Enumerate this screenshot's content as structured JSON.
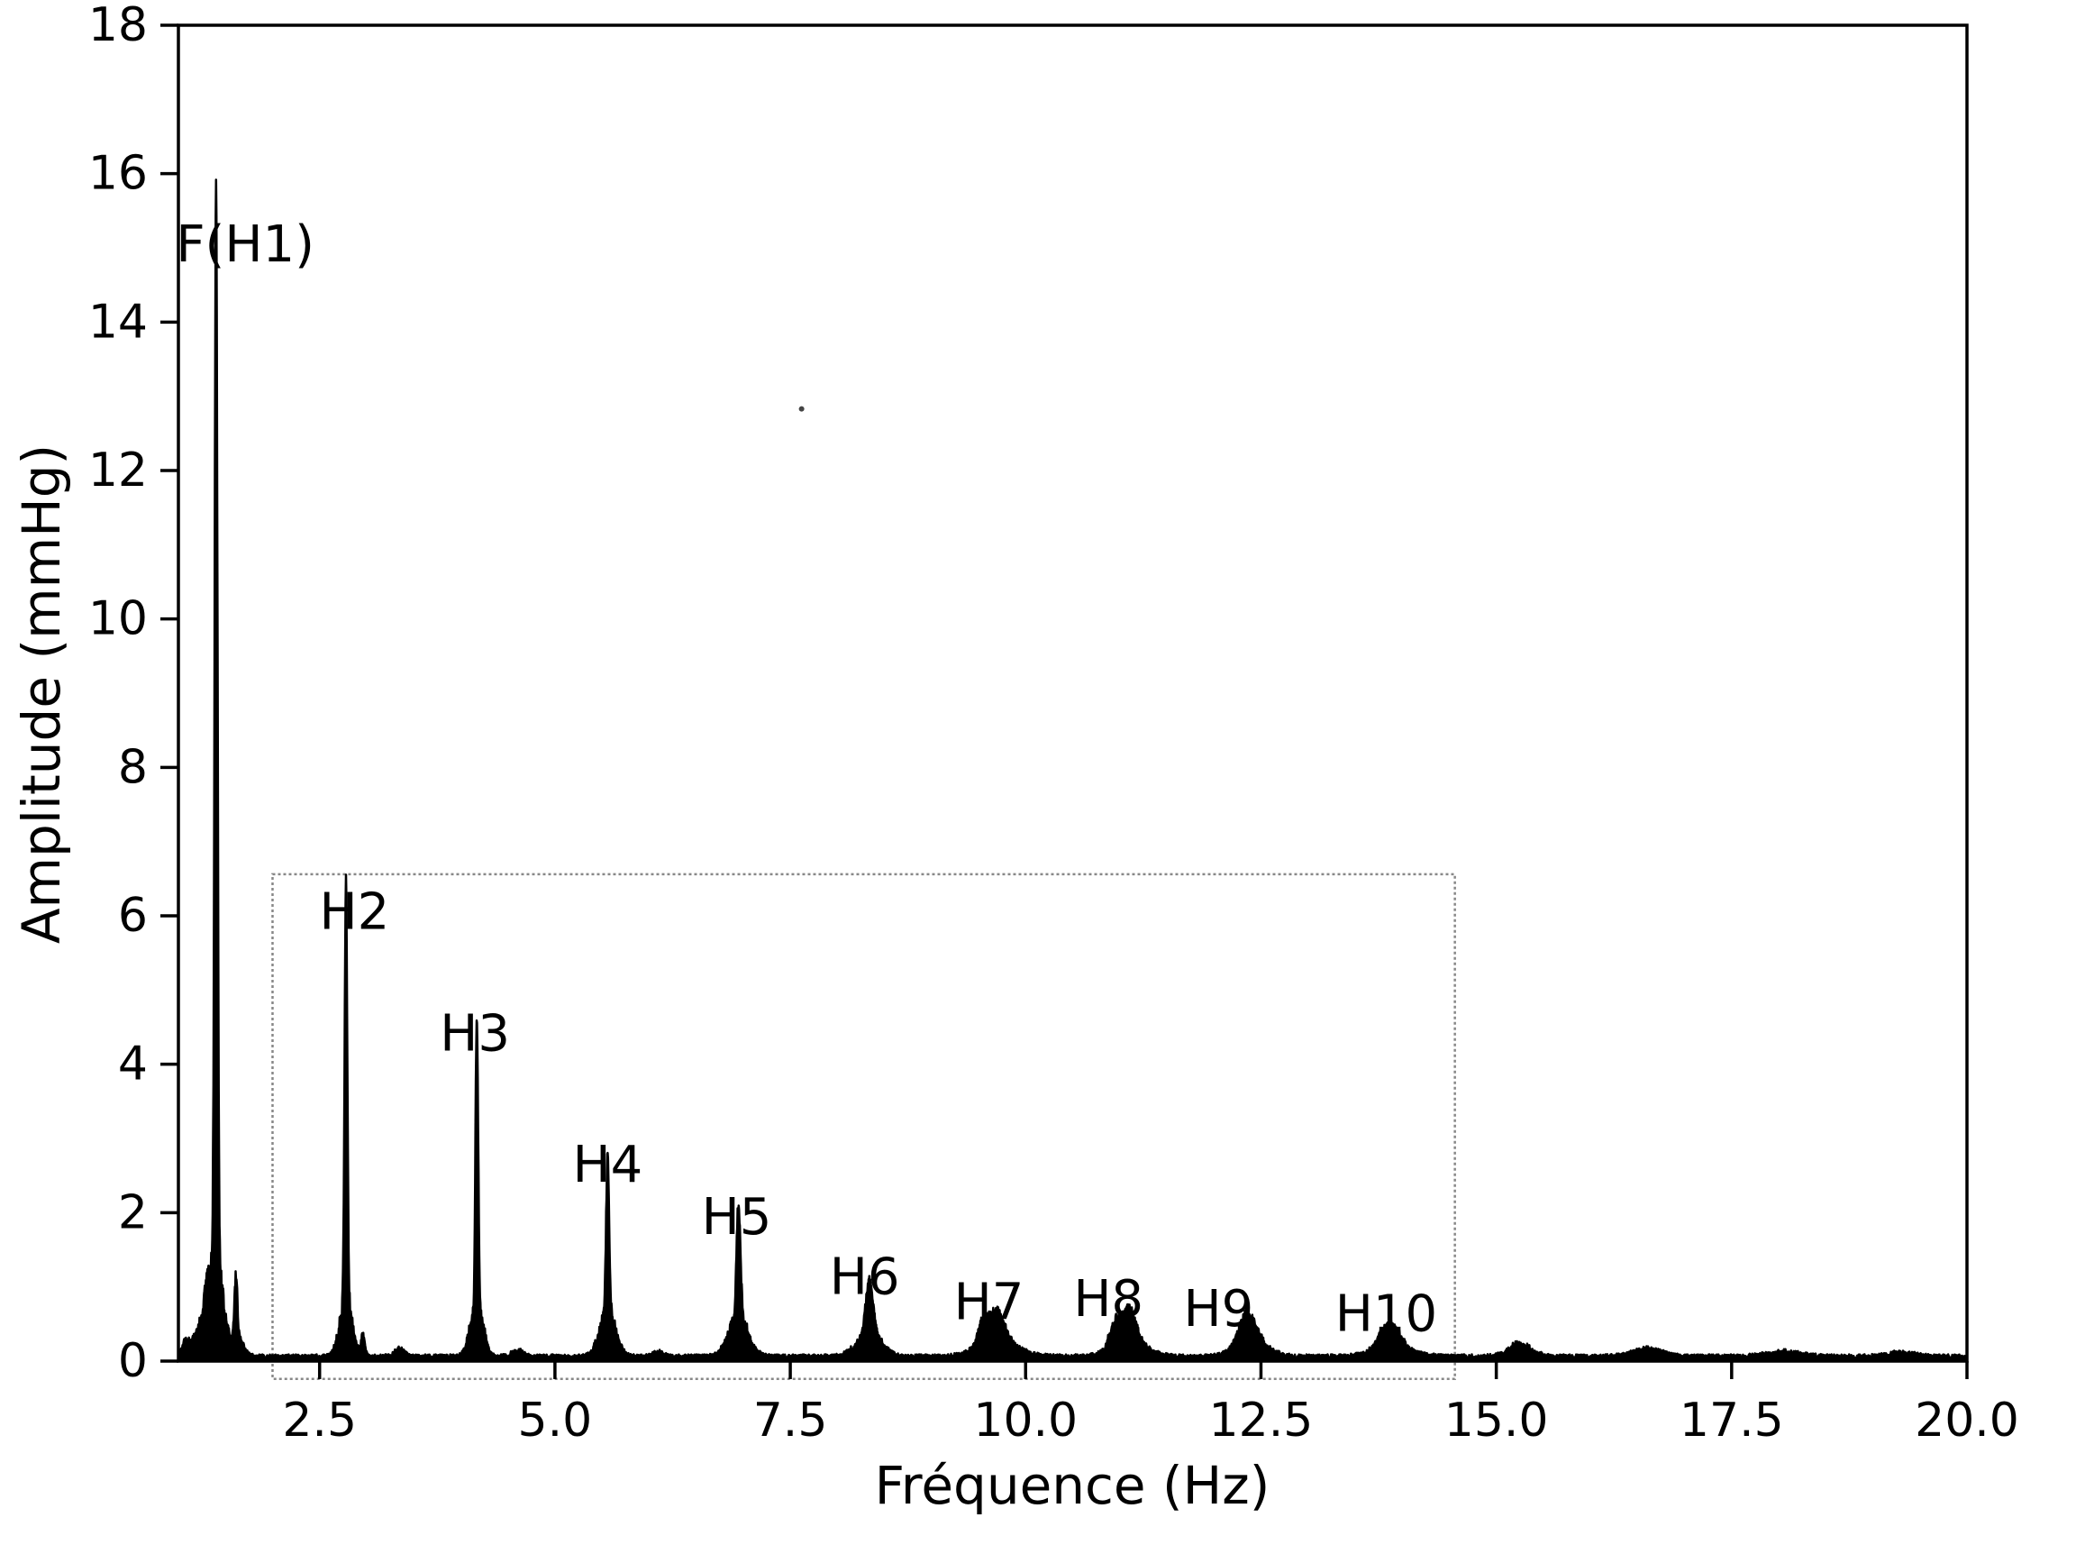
{
  "figure": {
    "background": "#ffffff",
    "line_color": "#000000",
    "axis_color": "#000000"
  },
  "chart_data": {
    "type": "line",
    "title": "",
    "xlabel": "Fréquence (Hz)",
    "ylabel": "Amplitude (mmHg)",
    "xlim": [
      1.0,
      20.0
    ],
    "ylim": [
      0,
      18
    ],
    "grid": false,
    "legend": "none",
    "xtick_labels": [
      "2.5",
      "5.0",
      "7.5",
      "10.0",
      "12.5",
      "15.0",
      "17.5",
      "20.0"
    ],
    "xtick_values": [
      2.5,
      5.0,
      7.5,
      10.0,
      12.5,
      15.0,
      17.5,
      20.0
    ],
    "ytick_labels": [
      "0",
      "2",
      "4",
      "6",
      "8",
      "10",
      "12",
      "14",
      "16",
      "18"
    ],
    "ytick_values": [
      0,
      2,
      4,
      6,
      8,
      10,
      12,
      14,
      16,
      18
    ],
    "peaks": [
      {
        "label": "F(H1)",
        "freq": 1.4,
        "amp": 14.55,
        "w": 0.015,
        "ped_a": 1.3,
        "ped_w": 0.075
      },
      {
        "label": "H2",
        "freq": 2.78,
        "amp": 5.62,
        "w": 0.014,
        "ped_a": 0.75,
        "ped_w": 0.065
      },
      {
        "label": "H3",
        "freq": 4.17,
        "amp": 3.95,
        "w": 0.014,
        "ped_a": 0.65,
        "ped_w": 0.07
      },
      {
        "label": "H4",
        "freq": 5.56,
        "amp": 2.12,
        "w": 0.016,
        "ped_a": 0.6,
        "ped_w": 0.085
      },
      {
        "label": "H5",
        "freq": 6.95,
        "amp": 1.5,
        "w": 0.02,
        "ped_a": 0.55,
        "ped_w": 0.1
      },
      {
        "label": "H6",
        "freq": 8.34,
        "amp": 0.72,
        "w": 0.04,
        "ped_a": 0.3,
        "ped_w": 0.13
      },
      {
        "label": "H7",
        "freq": 9.7,
        "amp": 0.4,
        "w": 0.08,
        "ped_a": 0.2,
        "ped_w": 0.2
      },
      {
        "label": "H8",
        "freq": 11.1,
        "amp": 0.44,
        "w": 0.07,
        "ped_a": 0.2,
        "ped_w": 0.18
      },
      {
        "label": "H9",
        "freq": 12.4,
        "amp": 0.3,
        "w": 0.08,
        "ped_a": 0.15,
        "ped_w": 0.18
      },
      {
        "label": "H10",
        "freq": 13.9,
        "amp": 0.24,
        "w": 0.09,
        "ped_a": 0.12,
        "ped_w": 0.2
      }
    ],
    "minor_bumps": [
      {
        "freq": 1.08,
        "amp": 0.22,
        "w": 0.04
      },
      {
        "freq": 1.2,
        "amp": 0.3,
        "w": 0.045
      },
      {
        "freq": 1.3,
        "amp": 0.5,
        "w": 0.04
      },
      {
        "freq": 1.61,
        "amp": 0.8,
        "w": 0.016
      },
      {
        "freq": 1.63,
        "amp": 0.25,
        "w": 0.06
      },
      {
        "freq": 2.96,
        "amp": 0.28,
        "w": 0.02
      },
      {
        "freq": 3.35,
        "amp": 0.1,
        "w": 0.05
      },
      {
        "freq": 4.6,
        "amp": 0.08,
        "w": 0.06
      },
      {
        "freq": 6.1,
        "amp": 0.07,
        "w": 0.05
      },
      {
        "freq": 9.55,
        "amp": 0.28,
        "w": 0.06
      },
      {
        "freq": 10.95,
        "amp": 0.3,
        "w": 0.06
      },
      {
        "freq": 12.3,
        "amp": 0.22,
        "w": 0.07
      },
      {
        "freq": 13.8,
        "amp": 0.15,
        "w": 0.08
      },
      {
        "freq": 15.25,
        "amp": 0.16,
        "w": 0.12
      },
      {
        "freq": 16.6,
        "amp": 0.1,
        "w": 0.15
      },
      {
        "freq": 18.05,
        "amp": 0.06,
        "w": 0.18
      },
      {
        "freq": 19.3,
        "amp": 0.05,
        "w": 0.15
      }
    ],
    "noise_floor": 0.07,
    "annotations": [
      {
        "label": "F(H1)",
        "x": 1.71,
        "y": 15.04
      },
      {
        "label": "H2",
        "x": 2.87,
        "y": 6.05
      },
      {
        "label": "H3",
        "x": 4.15,
        "y": 4.41
      },
      {
        "label": "H4",
        "x": 5.56,
        "y": 2.64
      },
      {
        "label": "H5",
        "x": 6.93,
        "y": 1.94
      },
      {
        "label": "H6",
        "x": 8.29,
        "y": 1.13
      },
      {
        "label": "H7",
        "x": 9.61,
        "y": 0.79
      },
      {
        "label": "H8",
        "x": 10.88,
        "y": 0.83
      },
      {
        "label": "H9",
        "x": 12.05,
        "y": 0.7
      },
      {
        "label": "H10",
        "x": 13.83,
        "y": 0.63
      }
    ],
    "highlight_box": {
      "x0": 2.0,
      "x1": 14.56,
      "y0": -0.24,
      "y1": 6.56,
      "color": "#888888",
      "style": "dotted"
    },
    "stray_dot": {
      "x": 7.62,
      "y": 12.83,
      "color": "#444444"
    }
  }
}
